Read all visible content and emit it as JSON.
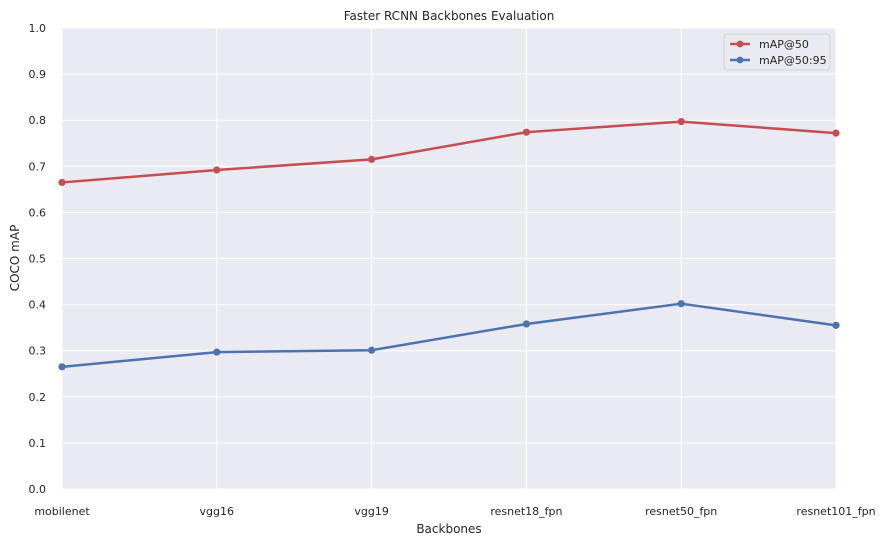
{
  "chart_data": {
    "type": "line",
    "title": "Faster RCNN Backbones Evaluation",
    "xlabel": "Backbones",
    "ylabel": "COCO mAP",
    "categories": [
      "mobilenet",
      "vgg16",
      "vgg19",
      "resnet18_fpn",
      "resnet50_fpn",
      "resnet101_fpn"
    ],
    "series": [
      {
        "name": "mAP@50",
        "color": "#c44e52",
        "values": [
          0.665,
          0.692,
          0.715,
          0.774,
          0.797,
          0.772
        ]
      },
      {
        "name": "mAP@50:95",
        "color": "#4c72b0",
        "values": [
          0.265,
          0.297,
          0.301,
          0.358,
          0.402,
          0.355
        ]
      }
    ],
    "ylim": [
      0,
      1.0
    ],
    "yticks": [
      "0.0",
      "0.1",
      "0.2",
      "0.3",
      "0.4",
      "0.5",
      "0.6",
      "0.7",
      "0.8",
      "0.9",
      "1.0"
    ],
    "grid": true,
    "legend_position": "top-right",
    "background_color": "#eaeaf2",
    "grid_color": "#ffffff"
  }
}
